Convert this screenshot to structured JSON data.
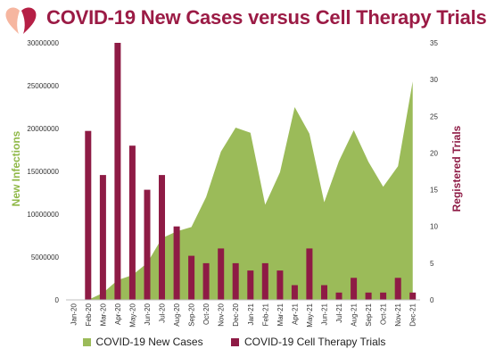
{
  "title": "COVID-19 New Cases versus Cell Therapy Trials",
  "colors": {
    "cases": "#9bbb59",
    "trials": "#8e1b45",
    "title": "#9b1b45",
    "logo_left": "#f6b6a0",
    "logo_right": "#b51f45"
  },
  "chart_data": {
    "type": "bar",
    "title": "COVID-19 New Cases versus Cell Therapy Trials",
    "categories": [
      "Jan-20",
      "Feb-20",
      "Mar-20",
      "Apr-20",
      "May-20",
      "Jun-20",
      "Jul-20",
      "Aug-20",
      "Sep-20",
      "Oct-20",
      "Nov-20",
      "Dec-20",
      "Jan-21",
      "Feb-21",
      "Mar-21",
      "Apr-21",
      "May-21",
      "Jun-21",
      "Jul-21",
      "Aug-21",
      "Sep-21",
      "Oct-21",
      "Nov-21",
      "Dec-21"
    ],
    "ylabel": "New Infections",
    "y2label": "Registered Trials",
    "ylim": [
      0,
      30000000
    ],
    "y2lim": [
      0,
      35
    ],
    "yticks": [
      "0",
      "5000000",
      "10000000",
      "15000000",
      "20000000",
      "25000000",
      "30000000"
    ],
    "y2ticks": [
      "0",
      "5",
      "10",
      "15",
      "20",
      "25",
      "30",
      "35"
    ],
    "legend_position": "bottom",
    "grid": false,
    "series": [
      {
        "name": "COVID-19 New Cases",
        "type": "area",
        "axis": "left",
        "values": [
          0,
          0,
          800000,
          2300000,
          2900000,
          4300000,
          7200000,
          8000000,
          8500000,
          12000000,
          17300000,
          20100000,
          19500000,
          11100000,
          14900000,
          22500000,
          19400000,
          11400000,
          16200000,
          19800000,
          16100000,
          13200000,
          15600000,
          25500000
        ]
      },
      {
        "name": "COVID-19 Cell Therapy Trials",
        "type": "bar",
        "axis": "right",
        "values": [
          0,
          23,
          17,
          35,
          21,
          15,
          17,
          10,
          6,
          5,
          7,
          5,
          4,
          5,
          4,
          2,
          7,
          2,
          1,
          3,
          1,
          1,
          3,
          1
        ]
      }
    ]
  }
}
